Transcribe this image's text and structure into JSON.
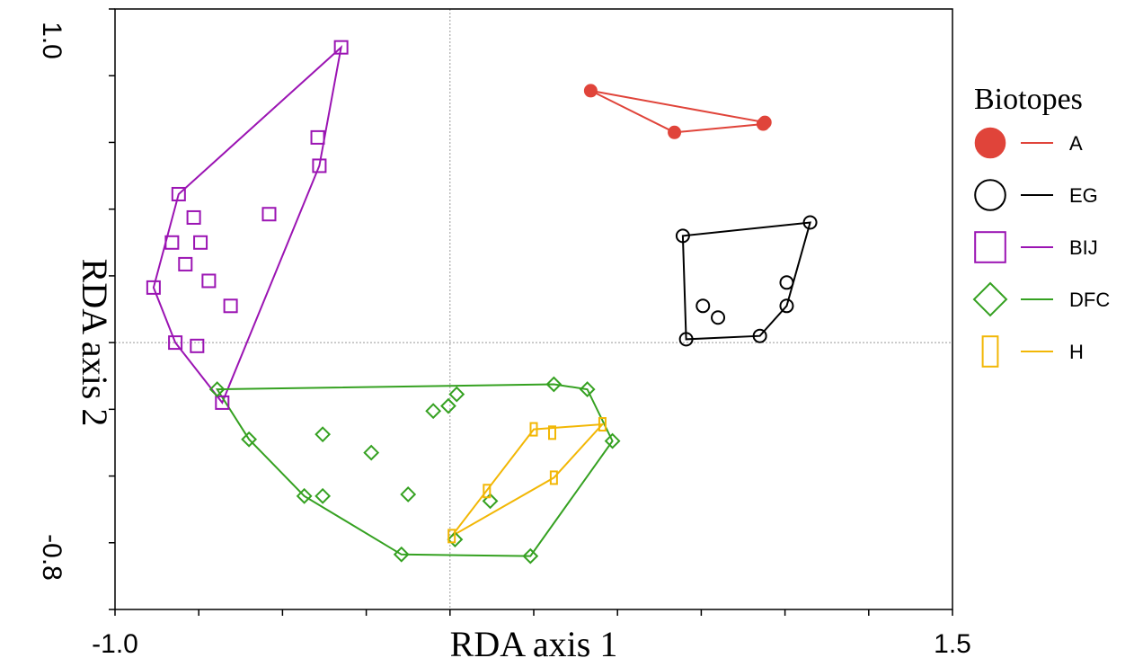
{
  "chart_data": {
    "type": "scatter",
    "xlabel": "RDA axis 1",
    "ylabel": "RDA axis 2",
    "xlim": [
      -1.0,
      1.5
    ],
    "ylim": [
      -0.8,
      1.0
    ],
    "x_tick_labels": [
      {
        "value": -1.0,
        "label": "-1.0"
      },
      {
        "value": 1.5,
        "label": "1.5"
      }
    ],
    "y_tick_labels": [
      {
        "value": 1.0,
        "label": "1.0"
      },
      {
        "value": -0.8,
        "label": "-0.8"
      }
    ],
    "x_ticks": [
      -1.0,
      -0.75,
      -0.5,
      -0.25,
      0.0,
      0.25,
      0.5,
      0.75,
      1.0,
      1.25,
      1.5
    ],
    "y_ticks": [
      -0.8,
      -0.6,
      -0.4,
      -0.2,
      0.0,
      0.2,
      0.4,
      0.6,
      0.8,
      1.0
    ],
    "reference_lines": {
      "x": 0.0,
      "y": 0.0,
      "style": "dotted"
    },
    "hull_style": "convex hull per group",
    "legend": {
      "title": "Biotopes",
      "placement": "right"
    },
    "series": [
      {
        "name": "A",
        "marker": "filled-circle",
        "color": "#e0443a",
        "points": [
          [
            0.42,
            0.755
          ],
          [
            0.67,
            0.63
          ],
          [
            0.935,
            0.655
          ],
          [
            0.94,
            0.66
          ]
        ]
      },
      {
        "name": "EG",
        "marker": "open-circle",
        "color": "#000000",
        "points": [
          [
            0.695,
            0.32
          ],
          [
            1.075,
            0.36
          ],
          [
            1.005,
            0.18
          ],
          [
            1.005,
            0.11
          ],
          [
            0.755,
            0.11
          ],
          [
            0.8,
            0.075
          ],
          [
            0.705,
            0.01
          ],
          [
            0.925,
            0.02
          ]
        ]
      },
      {
        "name": "BIJ",
        "marker": "open-square",
        "color": "#9b14b3",
        "points": [
          [
            -0.325,
            0.885
          ],
          [
            -0.395,
            0.615
          ],
          [
            -0.39,
            0.53
          ],
          [
            -0.81,
            0.445
          ],
          [
            -0.765,
            0.375
          ],
          [
            -0.54,
            0.385
          ],
          [
            -0.83,
            0.3
          ],
          [
            -0.745,
            0.3
          ],
          [
            -0.79,
            0.235
          ],
          [
            -0.72,
            0.185
          ],
          [
            -0.885,
            0.165
          ],
          [
            -0.655,
            0.11
          ],
          [
            -0.82,
            0.0
          ],
          [
            -0.755,
            -0.01
          ],
          [
            -0.68,
            -0.18
          ]
        ]
      },
      {
        "name": "DFC",
        "marker": "open-diamond",
        "color": "#35a121",
        "points": [
          [
            -0.695,
            -0.14
          ],
          [
            0.02,
            -0.155
          ],
          [
            -0.05,
            -0.205
          ],
          [
            -0.005,
            -0.19
          ],
          [
            0.31,
            -0.125
          ],
          [
            0.41,
            -0.14
          ],
          [
            -0.6,
            -0.29
          ],
          [
            -0.38,
            -0.275
          ],
          [
            -0.235,
            -0.33
          ],
          [
            0.485,
            -0.295
          ],
          [
            -0.435,
            -0.46
          ],
          [
            -0.38,
            -0.46
          ],
          [
            -0.125,
            -0.455
          ],
          [
            0.12,
            -0.475
          ],
          [
            0.015,
            -0.59
          ],
          [
            -0.145,
            -0.635
          ],
          [
            0.24,
            -0.64
          ]
        ]
      },
      {
        "name": "H",
        "marker": "open-rect",
        "color": "#f2b705",
        "points": [
          [
            0.25,
            -0.26
          ],
          [
            0.305,
            -0.27
          ],
          [
            0.455,
            -0.245
          ],
          [
            0.31,
            -0.405
          ],
          [
            0.11,
            -0.445
          ],
          [
            0.005,
            -0.58
          ]
        ]
      }
    ],
    "hulls": [
      {
        "series": "A",
        "vertices": [
          [
            0.42,
            0.755
          ],
          [
            0.67,
            0.63
          ],
          [
            0.935,
            0.655
          ],
          [
            0.94,
            0.66
          ]
        ]
      },
      {
        "series": "EG",
        "vertices": [
          [
            0.695,
            0.32
          ],
          [
            1.075,
            0.36
          ],
          [
            1.005,
            0.11
          ],
          [
            0.925,
            0.02
          ],
          [
            0.705,
            0.01
          ]
        ]
      },
      {
        "series": "BIJ",
        "vertices": [
          [
            -0.325,
            0.885
          ],
          [
            -0.39,
            0.53
          ],
          [
            -0.68,
            -0.18
          ],
          [
            -0.82,
            0.0
          ],
          [
            -0.885,
            0.165
          ],
          [
            -0.81,
            0.445
          ]
        ]
      },
      {
        "series": "DFC",
        "vertices": [
          [
            -0.695,
            -0.14
          ],
          [
            0.31,
            -0.125
          ],
          [
            0.41,
            -0.14
          ],
          [
            0.485,
            -0.295
          ],
          [
            0.24,
            -0.64
          ],
          [
            -0.145,
            -0.635
          ],
          [
            -0.435,
            -0.46
          ],
          [
            -0.6,
            -0.29
          ]
        ]
      },
      {
        "series": "H",
        "vertices": [
          [
            0.005,
            -0.58
          ],
          [
            0.25,
            -0.26
          ],
          [
            0.455,
            -0.245
          ],
          [
            0.31,
            -0.405
          ]
        ]
      }
    ]
  }
}
